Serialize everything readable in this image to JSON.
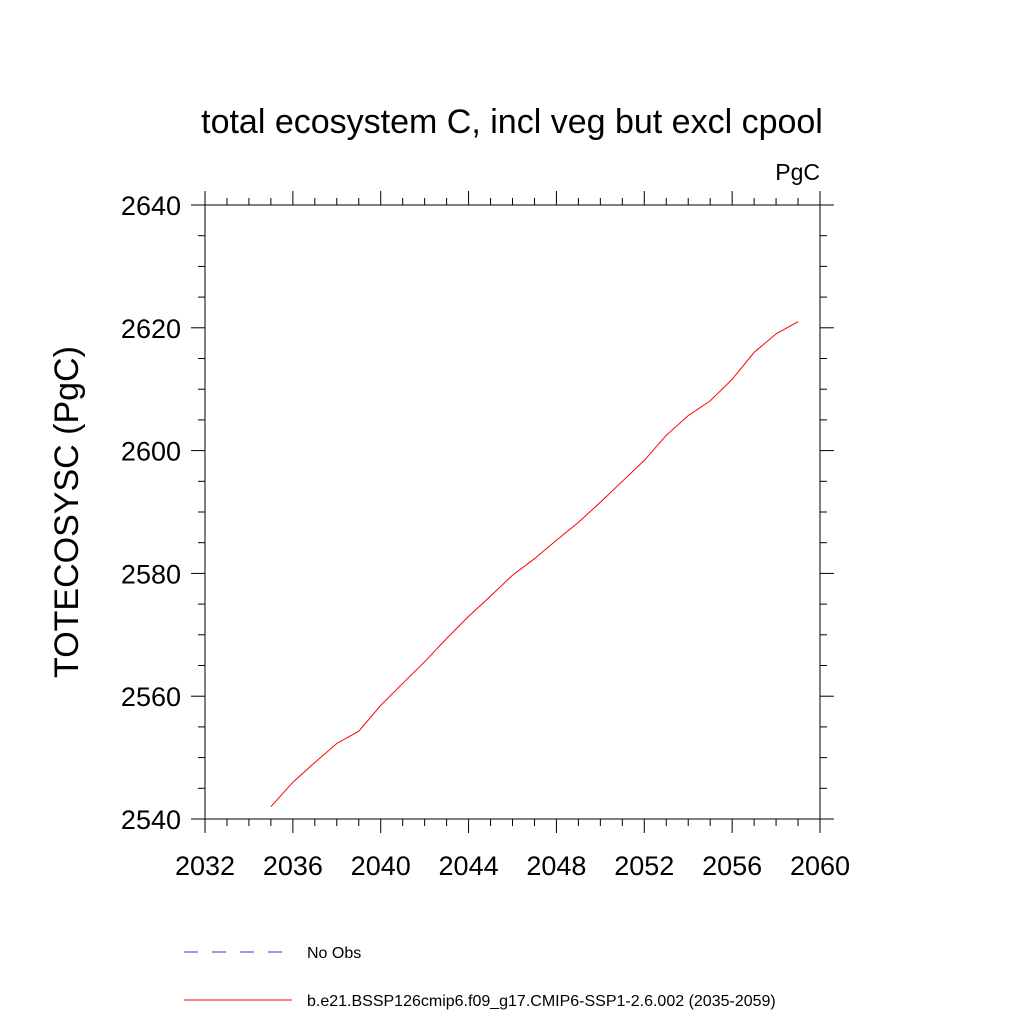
{
  "chart_data": {
    "type": "line",
    "title": "total ecosystem C, incl veg but excl cpool",
    "units_label": "PgC",
    "ylabel": "TOTECOSYSC  (PgC)",
    "xlabel": "",
    "xlim": [
      2032,
      2060
    ],
    "ylim": [
      2540,
      2640
    ],
    "x_ticks": [
      2032,
      2036,
      2040,
      2044,
      2048,
      2052,
      2056,
      2060
    ],
    "y_ticks": [
      2540,
      2560,
      2580,
      2600,
      2620,
      2640
    ],
    "x_tick_labels": [
      "2032",
      "2036",
      "2040",
      "2044",
      "2048",
      "2052",
      "2056",
      "2060"
    ],
    "y_tick_labels": [
      "2540",
      "2560",
      "2580",
      "2600",
      "2620",
      "2640"
    ],
    "grid": false,
    "legend_placement": "bottom-left",
    "legend": [
      {
        "label": "No Obs",
        "color": "#3333cc",
        "style": "dashed"
      },
      {
        "label": "b.e21.BSSP126cmip6.f09_g17.CMIP6-SSP1-2.6.002 (2035-2059)",
        "color": "#ff0000",
        "style": "solid"
      }
    ],
    "series": [
      {
        "name": "b.e21.BSSP126cmip6.f09_g17.CMIP6-SSP1-2.6.002 (2035-2059)",
        "color": "#ff0000",
        "x": [
          2035,
          2036,
          2037,
          2038,
          2039,
          2040,
          2041,
          2042,
          2043,
          2044,
          2045,
          2046,
          2047,
          2048,
          2049,
          2050,
          2051,
          2052,
          2053,
          2054,
          2055,
          2056,
          2057,
          2058,
          2059
        ],
        "values": [
          2542.0,
          2546.0,
          2549.2,
          2552.3,
          2554.3,
          2558.5,
          2562.1,
          2565.6,
          2569.4,
          2573.0,
          2576.3,
          2579.7,
          2582.4,
          2585.4,
          2588.3,
          2591.6,
          2595.0,
          2598.4,
          2602.5,
          2605.7,
          2608.1,
          2611.6,
          2616.0,
          2619.0,
          2621.0
        ]
      }
    ]
  }
}
